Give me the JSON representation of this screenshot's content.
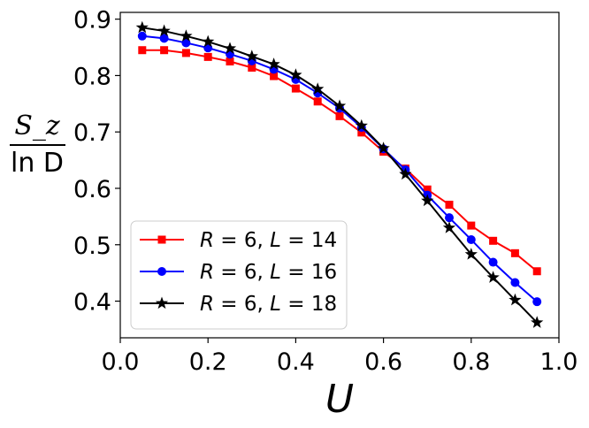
{
  "chart_data": {
    "type": "line",
    "title": "",
    "xlabel": "U",
    "ylabel": {
      "numerator": "S_z",
      "denominator": "ln D"
    },
    "xlim": [
      0.0,
      1.0
    ],
    "ylim": [
      0.335,
      0.912
    ],
    "xticks": [
      "0.0",
      "0.2",
      "0.4",
      "0.6",
      "0.8",
      "1.0"
    ],
    "yticks": [
      "0.4",
      "0.5",
      "0.6",
      "0.7",
      "0.8",
      "0.9"
    ],
    "grid": false,
    "legend_position": "lower-left",
    "x": [
      0.05,
      0.1,
      0.15,
      0.2,
      0.25,
      0.3,
      0.35,
      0.4,
      0.45,
      0.5,
      0.55,
      0.6,
      0.65,
      0.7,
      0.75,
      0.8,
      0.85,
      0.9,
      0.95
    ],
    "series": [
      {
        "name": "R = 6, L = 14",
        "legend": {
          "r": "R",
          "eq1": " = 6, ",
          "l": "L",
          "eq2": " = 14"
        },
        "color": "#ff0000",
        "marker": "square",
        "values": [
          0.845,
          0.845,
          0.84,
          0.833,
          0.825,
          0.814,
          0.799,
          0.777,
          0.754,
          0.728,
          0.699,
          0.665,
          0.635,
          0.598,
          0.571,
          0.534,
          0.507,
          0.485,
          0.453
        ]
      },
      {
        "name": "R = 6, L = 16",
        "legend": {
          "r": "R",
          "eq1": " = 6, ",
          "l": "L",
          "eq2": " = 16"
        },
        "color": "#0000ff",
        "marker": "circle",
        "values": [
          0.87,
          0.866,
          0.858,
          0.849,
          0.838,
          0.826,
          0.811,
          0.793,
          0.769,
          0.742,
          0.708,
          0.67,
          0.633,
          0.588,
          0.548,
          0.509,
          0.469,
          0.433,
          0.399
        ]
      },
      {
        "name": "R = 6, L = 18",
        "legend": {
          "r": "R",
          "eq1": " = 6, ",
          "l": "L",
          "eq2": " = 18"
        },
        "color": "#000000",
        "marker": "star",
        "values": [
          0.885,
          0.879,
          0.87,
          0.86,
          0.848,
          0.834,
          0.82,
          0.801,
          0.776,
          0.746,
          0.711,
          0.671,
          0.625,
          0.578,
          0.53,
          0.483,
          0.442,
          0.402,
          0.362
        ]
      }
    ]
  }
}
